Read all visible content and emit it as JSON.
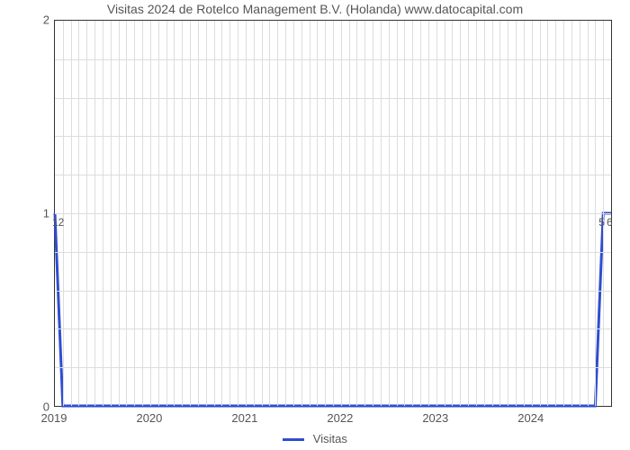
{
  "chart": {
    "type": "line",
    "title": "Visitas 2024 de Rotelco Management B.V. (Holanda) www.datocapital.com",
    "title_fontsize": 14,
    "title_color": "#555555",
    "background_color": "#ffffff",
    "plot_border_color": "#333333",
    "grid_color": "#dddddd",
    "label_color": "#555555",
    "label_fontsize": 13,
    "xlim": [
      2019,
      2024.833
    ],
    "ylim": [
      0,
      2
    ],
    "x_major_ticks": [
      2019,
      2020,
      2021,
      2022,
      2023,
      2024
    ],
    "x_major_labels": [
      "2019",
      "2020",
      "2021",
      "2022",
      "2023",
      "2024"
    ],
    "x_minor_tick_step": 0.0833,
    "y_major_ticks": [
      0,
      1,
      2
    ],
    "y_major_labels": [
      "0",
      "1",
      "2"
    ],
    "y_minor_count_between": 4,
    "series": {
      "name": "Visitas",
      "color": "#2f4dd2",
      "line_width": 3,
      "points": [
        {
          "x": 2019.0,
          "y": 1.0,
          "label": "12"
        },
        {
          "x": 2019.083,
          "y": 0.0,
          "label": null
        },
        {
          "x": 2024.667,
          "y": 0.0,
          "label": null
        },
        {
          "x": 2024.75,
          "y": 1.0,
          "label": "5"
        },
        {
          "x": 2024.833,
          "y": 1.0,
          "label": "6"
        }
      ]
    },
    "legend": {
      "label": "Visitas",
      "swatch_color": "#2f4dd2",
      "position": "bottom-center",
      "fontsize": 13
    }
  }
}
